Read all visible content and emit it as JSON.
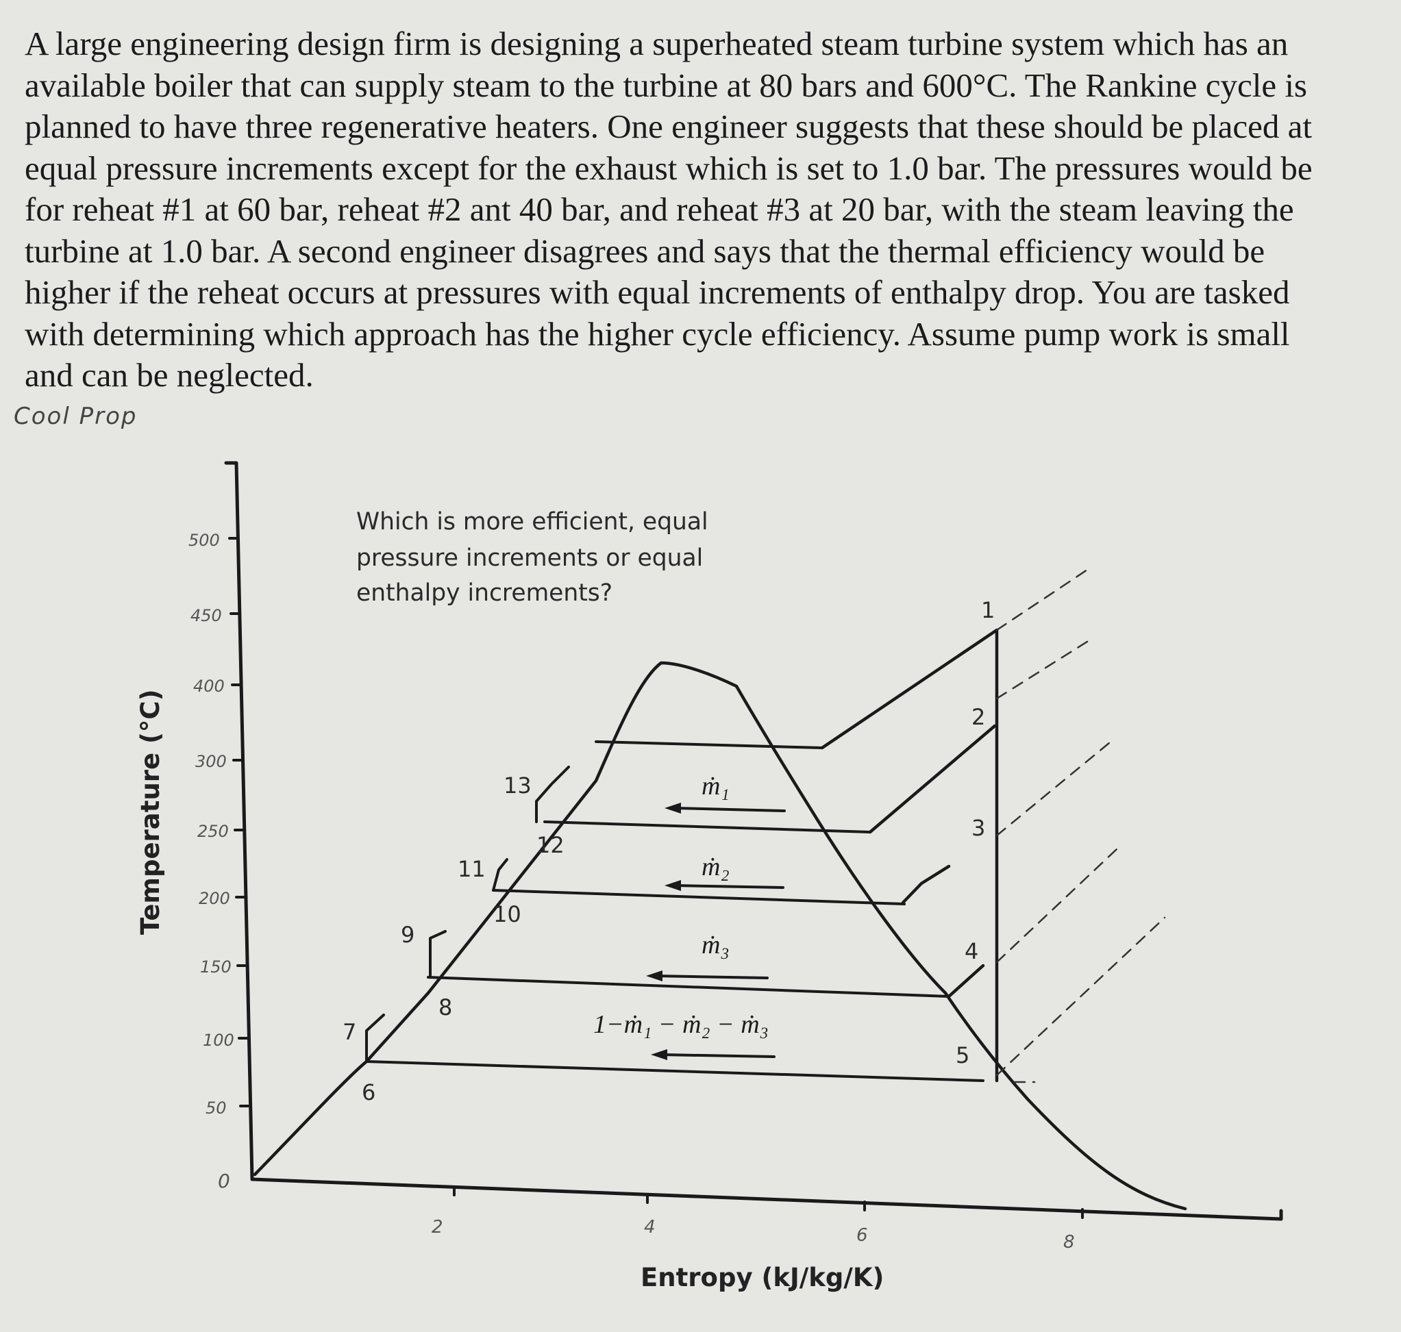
{
  "problem": {
    "lines": [
      "A large engineering design firm is designing a superheated steam turbine system which has an",
      "available boiler that can supply steam to the turbine at 80 bars and 600°C. The Rankine cycle is",
      "planned to have three regenerative heaters. One engineer suggests that these should be placed at",
      "equal pressure increments except for the exhaust which is set to 1.0 bar. The pressures would be",
      "for reheat #1 at 60 bar, reheat #2 ant 40 bar, and reheat #3 at 20 bar, with the steam leaving the",
      "turbine at 1.0 bar. A second engineer disagrees and says that the thermal efficiency would be",
      "higher if the reheat occurs at pressures with equal increments of enthalpy drop. You are tasked",
      "with determining which approach has the higher cycle efficiency. Assume pump work is small",
      "and can be neglected."
    ]
  },
  "handwritten_note": "Cool Prop",
  "diagram": {
    "question_lines": [
      "Which is more efficient, equal",
      "pressure increments or equal",
      "enthalpy increments?"
    ],
    "x_axis_label": "Entropy (kJ/kg/K)",
    "y_axis_label": "Temperature (°C)",
    "y_ticks": [
      "500",
      "450",
      "400",
      "300",
      "250",
      "200",
      "150",
      "100",
      "50",
      "0"
    ],
    "x_ticks": [
      "2",
      "4",
      "6",
      "8"
    ],
    "state_labels": [
      "1",
      "2",
      "3",
      "4",
      "5",
      "6",
      "7",
      "8",
      "9",
      "10",
      "11",
      "12",
      "13"
    ],
    "flow_labels": [
      "ṁ₁",
      "ṁ₂",
      "ṁ₃",
      "1−ṁ₁ − ṁ₂ − ṁ₃"
    ]
  }
}
